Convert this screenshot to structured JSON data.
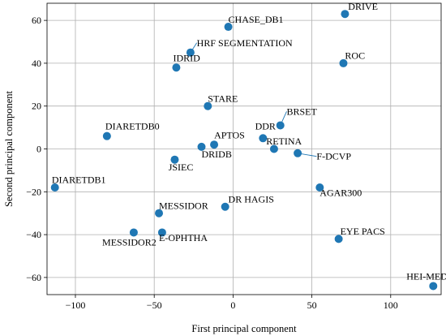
{
  "chart_data": {
    "type": "scatter",
    "xlabel": "First principal component",
    "ylabel": "Second principal component",
    "xlim": [
      -118,
      132
    ],
    "ylim": [
      -68,
      68
    ],
    "xticks": [
      -100,
      -50,
      0,
      50,
      100
    ],
    "yticks": [
      -60,
      -40,
      -20,
      0,
      20,
      40,
      60
    ],
    "grid": true,
    "point_color": "#1f77b4",
    "points": [
      {
        "label": "DRIVE",
        "x": 71,
        "y": 63,
        "lx": 73,
        "ly": 65,
        "leader": false
      },
      {
        "label": "CHASE_DB1",
        "x": -3,
        "y": 57,
        "lx": -3,
        "ly": 59,
        "leader": false
      },
      {
        "label": "HRF SEGMENTATION",
        "x": -27,
        "y": 45,
        "lx": -23,
        "ly": 48,
        "leader": true
      },
      {
        "label": "ROC",
        "x": 70,
        "y": 40,
        "lx": 71,
        "ly": 42,
        "leader": false
      },
      {
        "label": "IDRID",
        "x": -36,
        "y": 38,
        "lx": -38,
        "ly": 41,
        "leader": false
      },
      {
        "label": "STARE",
        "x": -16,
        "y": 20,
        "lx": -16,
        "ly": 22,
        "leader": false
      },
      {
        "label": "BRSET",
        "x": 30,
        "y": 11,
        "lx": 34,
        "ly": 16,
        "leader": true
      },
      {
        "label": "DIARETDB0",
        "x": -80,
        "y": 6,
        "lx": -81,
        "ly": 9,
        "leader": false
      },
      {
        "label": "DDR",
        "x": 19,
        "y": 5,
        "lx": 14,
        "ly": 9,
        "leader": false
      },
      {
        "label": "APTOS",
        "x": -12,
        "y": 2,
        "lx": -12,
        "ly": 5,
        "leader": false
      },
      {
        "label": "RETINA",
        "x": 26,
        "y": 0,
        "lx": 21,
        "ly": 2,
        "leader": false
      },
      {
        "label": "DRIDB",
        "x": -20,
        "y": 1,
        "lx": -20,
        "ly": -4,
        "leader": false
      },
      {
        "label": "F-DCVP",
        "x": 41,
        "y": -2,
        "lx": 53,
        "ly": -5,
        "leader": true
      },
      {
        "label": "JSIEC",
        "x": -37,
        "y": -5,
        "lx": -41,
        "ly": -10,
        "leader": false
      },
      {
        "label": "DIARETDB1",
        "x": -113,
        "y": -18,
        "lx": -115,
        "ly": -16,
        "leader": false
      },
      {
        "label": "AGAR300",
        "x": 55,
        "y": -18,
        "lx": 55,
        "ly": -22,
        "leader": false
      },
      {
        "label": "DR HAGIS",
        "x": -5,
        "y": -27,
        "lx": -3,
        "ly": -25,
        "leader": false
      },
      {
        "label": "MESSIDOR",
        "x": -47,
        "y": -30,
        "lx": -47,
        "ly": -28,
        "leader": false
      },
      {
        "label": "E-OPHTHA",
        "x": -45,
        "y": -39,
        "lx": -47,
        "ly": -43,
        "leader": false
      },
      {
        "label": "MESSIDOR2",
        "x": -63,
        "y": -39,
        "lx": -83,
        "ly": -45,
        "leader": false
      },
      {
        "label": "EYE PACS",
        "x": 67,
        "y": -42,
        "lx": 68,
        "ly": -40,
        "leader": false
      },
      {
        "label": "HEI-MED",
        "x": 127,
        "y": -64,
        "lx": 110,
        "ly": -61,
        "leader": false
      }
    ]
  }
}
